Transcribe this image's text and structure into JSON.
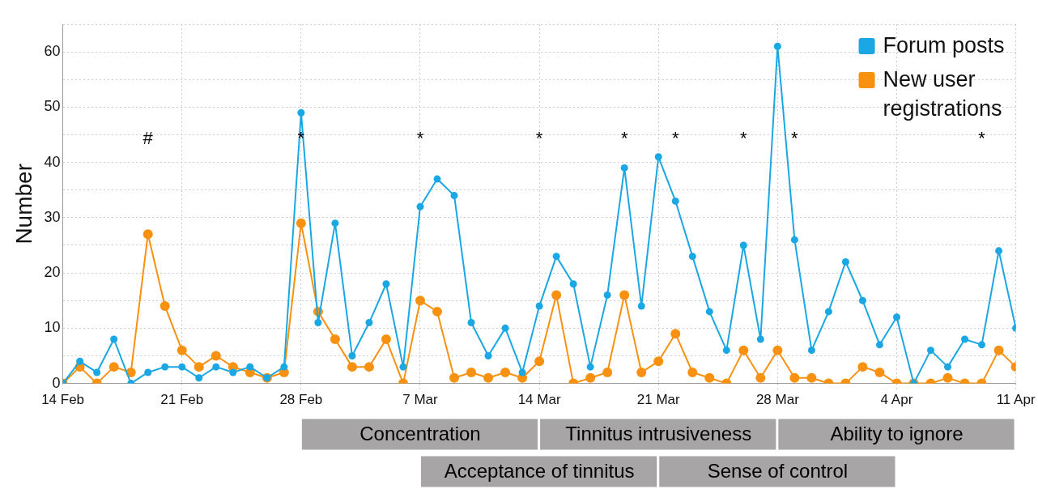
{
  "chart_data": {
    "type": "line",
    "ylabel": "Number",
    "x": [
      "--02-14",
      "--02-15",
      "--02-16",
      "--02-17",
      "--02-18",
      "--02-19",
      "--02-20",
      "--02-21",
      "--02-22",
      "--02-23",
      "--02-24",
      "--02-25",
      "--02-26",
      "--02-27",
      "--02-28",
      "--03-01",
      "--03-02",
      "--03-03",
      "--03-04",
      "--03-05",
      "--03-06",
      "--03-07",
      "--03-08",
      "--03-09",
      "--03-10",
      "--03-11",
      "--03-12",
      "--03-13",
      "--03-14",
      "--03-15",
      "--03-16",
      "--03-17",
      "--03-18",
      "--03-19",
      "--03-20",
      "--03-21",
      "--03-22",
      "--03-23",
      "--03-24",
      "--03-25",
      "--03-26",
      "--03-27",
      "--03-28",
      "--03-29",
      "--03-30",
      "--03-31",
      "--04-01",
      "--04-02",
      "--04-03",
      "--04-04",
      "--04-05",
      "--04-06",
      "--04-07",
      "--04-08",
      "--04-09",
      "--04-10",
      "--04-11"
    ],
    "series": [
      {
        "name": "Forum posts",
        "color": "#1ba7e3",
        "values": [
          0,
          4,
          2,
          8,
          0,
          2,
          3,
          3,
          1,
          3,
          2,
          3,
          1,
          3,
          49,
          11,
          29,
          5,
          11,
          18,
          3,
          32,
          37,
          34,
          11,
          5,
          10,
          2,
          14,
          23,
          18,
          3,
          16,
          39,
          14,
          41,
          33,
          23,
          13,
          6,
          25,
          8,
          61,
          26,
          6,
          13,
          22,
          15,
          7,
          12,
          0,
          6,
          3,
          8,
          7,
          24,
          10
        ]
      },
      {
        "name": "New user registrations",
        "color": "#f7910f",
        "values": [
          0,
          3,
          0,
          3,
          2,
          27,
          14,
          6,
          3,
          5,
          3,
          2,
          1,
          2,
          29,
          13,
          8,
          3,
          3,
          8,
          0,
          15,
          13,
          1,
          2,
          1,
          2,
          1,
          4,
          16,
          0,
          1,
          2,
          16,
          2,
          4,
          9,
          2,
          1,
          0,
          6,
          1,
          6,
          1,
          1,
          0,
          0,
          3,
          2,
          0,
          0,
          0,
          1,
          0,
          0,
          6,
          3
        ]
      }
    ],
    "xlim": [
      "--02-14",
      "--04-11"
    ],
    "xticks": [
      {
        "value": "--02-14",
        "label": "14 Feb"
      },
      {
        "value": "--02-21",
        "label": "21 Feb"
      },
      {
        "value": "--02-28",
        "label": "28 Feb"
      },
      {
        "value": "--03-07",
        "label": "7 Mar"
      },
      {
        "value": "--03-14",
        "label": "14 Mar"
      },
      {
        "value": "--03-21",
        "label": "21 Mar"
      },
      {
        "value": "--03-28",
        "label": "28 Mar"
      },
      {
        "value": "--04-04",
        "label": "4 Apr"
      },
      {
        "value": "--04-11",
        "label": "11 Apr"
      }
    ],
    "ylim": [
      0,
      65
    ],
    "yticks": [
      0,
      {
        "value": 5,
        "label": null
      },
      10,
      {
        "value": 15,
        "label": null
      },
      20,
      {
        "value": 25,
        "label": null
      },
      30,
      {
        "value": 35,
        "label": null
      },
      40,
      {
        "value": 45,
        "label": null
      },
      50,
      {
        "value": 55,
        "label": null
      },
      60,
      {
        "value": 65,
        "label": null
      }
    ],
    "grid": true,
    "legend": "top right",
    "marker": "circle",
    "line_style": "solid",
    "annotations": [
      "#",
      "*",
      "*",
      "*",
      "*",
      "*",
      "*",
      "*",
      "*",
      "Concentration",
      "Acceptance of tinnitus",
      "Tinnitus intrusiveness",
      "Sense of control",
      "Ability to ignore"
    ]
  }
}
